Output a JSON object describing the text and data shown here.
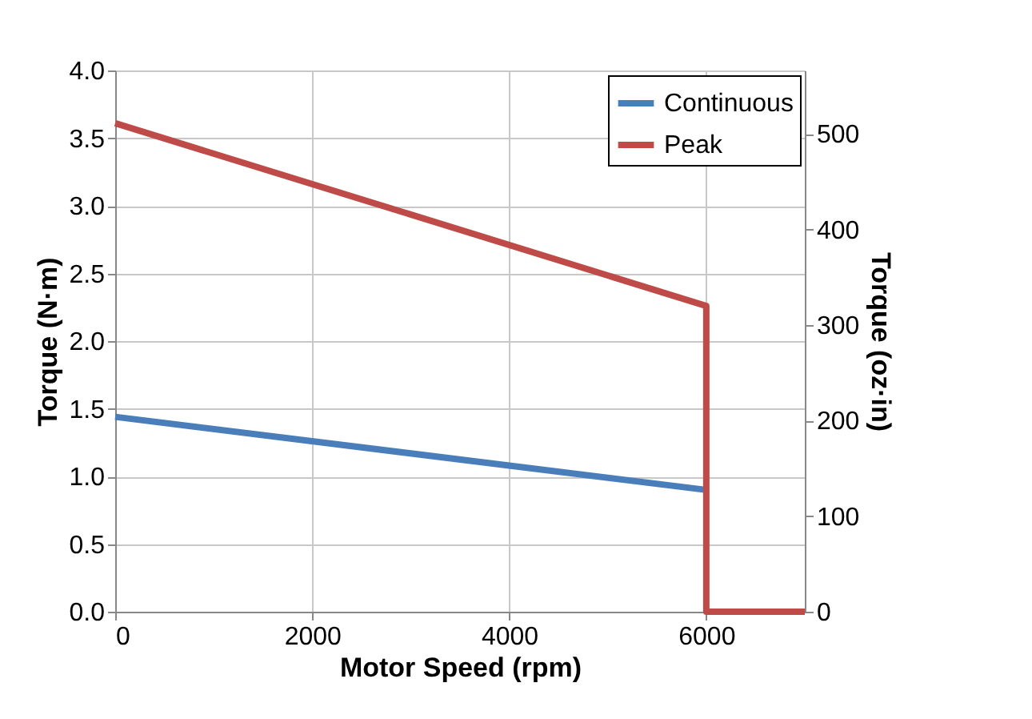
{
  "chart_data": {
    "type": "line",
    "xlabel": "Motor Speed (rpm)",
    "ylabel": "Torque (N·m)",
    "y2label": "Torque (oz·in)",
    "xlim": [
      0,
      7000
    ],
    "xticks": [
      0,
      2000,
      4000,
      6000
    ],
    "ylim": [
      0,
      4
    ],
    "yticks": [
      {
        "value": 0,
        "label": "0.0"
      },
      {
        "value": 0.5,
        "label": "0.5"
      },
      {
        "value": 1,
        "label": "1.0"
      },
      {
        "value": 1.5,
        "label": "1.5"
      },
      {
        "value": 2,
        "label": "2.0"
      },
      {
        "value": 2.5,
        "label": "2.5"
      },
      {
        "value": 3,
        "label": "3.0"
      },
      {
        "value": 3.5,
        "label": "3.5"
      },
      {
        "value": 4,
        "label": "4.0"
      }
    ],
    "y2lim": [
      0,
      566.4
    ],
    "y2ticks": [
      0,
      100,
      200,
      300,
      400,
      500
    ],
    "grid": true,
    "legend": "top right",
    "line_style": "solid",
    "series": [
      {
        "name": "Continuous",
        "color": "#4a7ebb",
        "x": [
          0,
          6000
        ],
        "values": [
          1.44,
          0.9
        ]
      },
      {
        "name": "Peak",
        "color": "#be4b48",
        "x": [
          0,
          6000,
          6000,
          7000
        ],
        "values": [
          3.61,
          2.26,
          0,
          0
        ]
      }
    ]
  }
}
